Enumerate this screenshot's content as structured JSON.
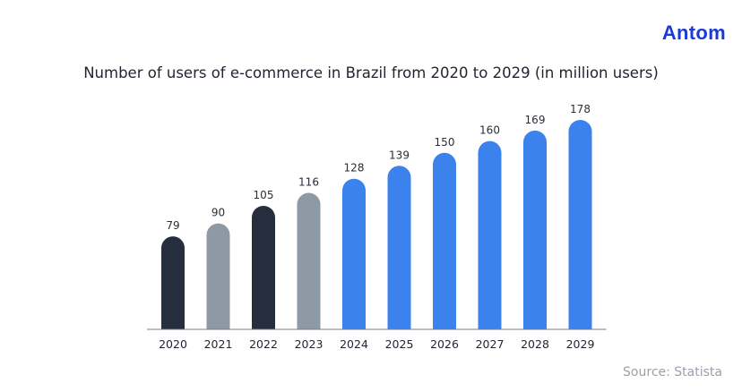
{
  "logo": "Antom",
  "source": "Source: Statista",
  "colors": {
    "dark": "#262d3d",
    "gray": "#8e99a6",
    "blue": "#3b82ec",
    "baseline": "#7a7f88"
  },
  "chart_data": {
    "type": "bar",
    "title": "Number of users of e-commerce in Brazil from 2020 to 2029 (in million users)",
    "xlabel": "",
    "ylabel": "",
    "ylim": [
      0,
      178
    ],
    "grid": false,
    "categories": [
      "2020",
      "2021",
      "2022",
      "2023",
      "2024",
      "2025",
      "2026",
      "2027",
      "2028",
      "2029"
    ],
    "values": [
      79,
      90,
      105,
      116,
      128,
      139,
      150,
      160,
      169,
      178
    ],
    "bar_colors": [
      "dark",
      "gray",
      "dark",
      "gray",
      "blue",
      "blue",
      "blue",
      "blue",
      "blue",
      "blue"
    ]
  }
}
